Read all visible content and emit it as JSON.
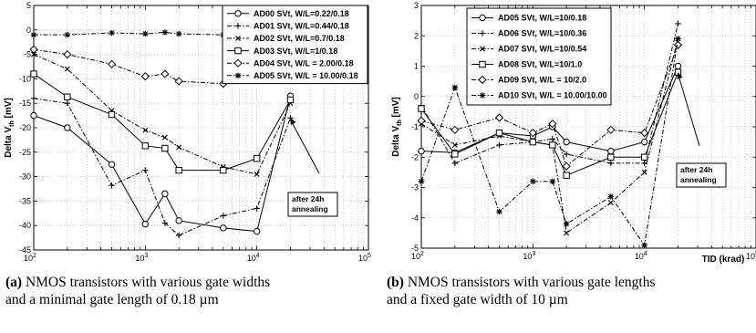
{
  "chart_data": [
    {
      "type": "line",
      "xscale": "log",
      "xlim": [
        100,
        100000
      ],
      "ylim": [
        -45,
        5
      ],
      "xticks": [
        100,
        1000,
        10000,
        100000
      ],
      "xtick_labels": [
        [
          "10",
          "2"
        ],
        [
          "10",
          "3"
        ],
        [
          "10",
          "4"
        ],
        [
          "10",
          "5"
        ]
      ],
      "yticks": [
        5,
        0,
        -5,
        -10,
        -15,
        -20,
        -25,
        -30,
        -35,
        -40,
        -45
      ],
      "ylabel": "Delta V",
      "ylabel_sub": "th",
      "ylabel_unit": " [mV]",
      "xlabel": "",
      "grid": true,
      "legend_position": "top-right",
      "annotation": {
        "lines": [
          "after 24h",
          "annealing"
        ],
        "x": 20000,
        "y": -18
      },
      "caption": {
        "label": "(a)",
        "line1": "NMOS transistors with various gate widths",
        "line2": "and a minimal gate length of 0.18 µm"
      },
      "series": [
        {
          "name": "AD00 SVt, W/L=0.22/0.18",
          "marker": "circle",
          "dash": "solid",
          "x": [
            100,
            200,
            500,
            1000,
            1500,
            2000,
            5000,
            10000,
            20000
          ],
          "y": [
            -17.5,
            -20,
            -27.5,
            -39.7,
            -33.5,
            -39,
            -40.5,
            -41.2,
            -13.5
          ]
        },
        {
          "name": "AD01 SVt, W/L=0.44/0.18",
          "marker": "plus",
          "dash": "dashdot",
          "x": [
            100,
            200,
            500,
            1000,
            1500,
            2000,
            5000,
            10000,
            20000
          ],
          "y": [
            -14,
            -15,
            -31.8,
            -28.7,
            -39.5,
            -42,
            -38,
            -36.5,
            -18
          ]
        },
        {
          "name": "AD02 SVt, W/L=0.7/0.18",
          "marker": "x",
          "dash": "dashdot",
          "x": [
            100,
            200,
            500,
            1000,
            1500,
            2000,
            5000,
            10000,
            20000
          ],
          "y": [
            -5,
            -8,
            -16.5,
            -20.5,
            -22,
            -24,
            -28,
            -29.5,
            -15
          ]
        },
        {
          "name": "AD03 SVt, W/L=1/0.18",
          "marker": "square",
          "dash": "solid",
          "x": [
            100,
            200,
            500,
            1000,
            1500,
            2000,
            5000,
            10000,
            20000
          ],
          "y": [
            -9,
            -13.7,
            -17.3,
            -23.7,
            -24.2,
            -28.7,
            -28.7,
            -26.3,
            -14.3
          ]
        },
        {
          "name": "AD04 SVt, W/L = 2.00/0.18",
          "marker": "diamond",
          "dash": "dashdot",
          "x": [
            100,
            200,
            500,
            1000,
            1500,
            2000,
            5000,
            10000
          ],
          "y": [
            -4,
            -5,
            -7,
            -9.5,
            -9,
            -10.5,
            -11,
            -10.2
          ]
        },
        {
          "name": "AD05 SVt, W/L = 10.00/0.18",
          "marker": "star",
          "dash": "dashdot",
          "x": [
            100,
            200,
            500,
            1000,
            1500,
            2000,
            5000,
            10000
          ],
          "y": [
            -1,
            -1,
            -0.6,
            -0.8,
            -0.5,
            -0.8,
            -1,
            -1
          ]
        }
      ]
    },
    {
      "type": "line",
      "xscale": "log",
      "xlim": [
        100,
        100000
      ],
      "ylim": [
        -5,
        3
      ],
      "xticks": [
        100,
        1000,
        10000,
        100000
      ],
      "xtick_labels": [
        [
          "10",
          "2"
        ],
        [
          "10",
          "3"
        ],
        [
          "10",
          "4"
        ],
        [
          "10",
          "5"
        ]
      ],
      "yticks": [
        3,
        2,
        1,
        0,
        -1,
        -2,
        -3,
        -4,
        -5
      ],
      "ylabel": "Delta V",
      "ylabel_sub": "th",
      "ylabel_unit": " [mV]",
      "xlabel": "TID (krad)",
      "grid": true,
      "legend_position": "top-left",
      "annotation": {
        "lines": [
          "after 24h",
          "annealing"
        ],
        "x": 20000,
        "y": 0.8
      },
      "caption": {
        "label": "(b)",
        "line1": "NMOS transistors with various gate lengths",
        "line2": "and a fixed gate width of 10 µm"
      },
      "series": [
        {
          "name": "AD05 SVt, W/L=10/0.18",
          "marker": "circle",
          "dash": "solid",
          "x": [
            100,
            200,
            500,
            1000,
            1500,
            2000,
            5000,
            10000,
            20000
          ],
          "y": [
            -1.8,
            -1.85,
            -1.2,
            -1.3,
            -1.0,
            -1.5,
            -1.8,
            -1.5,
            1.0
          ]
        },
        {
          "name": "AD06 SVt, W/L=10/0.36",
          "marker": "plus",
          "dash": "dashdot",
          "x": [
            100,
            200,
            500,
            1000,
            1500,
            2000,
            5000,
            10000,
            20000
          ],
          "y": [
            -0.3,
            -2.2,
            -1.6,
            -1.5,
            -1.4,
            -1.9,
            -2.2,
            -2.2,
            2.4
          ]
        },
        {
          "name": "AD07 SVt, W/L=10/0.54",
          "marker": "x",
          "dash": "dashdot",
          "x": [
            100,
            200,
            500,
            1000,
            1500,
            2000,
            5000,
            10000,
            20000
          ],
          "y": [
            -0.9,
            -1.6,
            -1.3,
            -1.5,
            -1.6,
            -4.5,
            -3.5,
            -2.5,
            1.9
          ]
        },
        {
          "name": "AD08 SVt, W/L=10/1.0",
          "marker": "square",
          "dash": "solid",
          "x": [
            100,
            200,
            500,
            1000,
            1500,
            2000,
            5000,
            10000,
            20000
          ],
          "y": [
            -0.4,
            -1.9,
            -1.2,
            -1.5,
            -1.6,
            -2.6,
            -2.0,
            -2.0,
            0.8
          ]
        },
        {
          "name": "AD09 SVt, W/L = 10/2.0",
          "marker": "diamond",
          "dash": "dashdot",
          "x": [
            100,
            200,
            500,
            1000,
            1500,
            2000,
            5000,
            10000,
            20000
          ],
          "y": [
            -0.8,
            -1.1,
            -0.7,
            -1.2,
            -0.9,
            -2.3,
            -1.1,
            -1.2,
            1.7
          ]
        },
        {
          "name": "AD10 SVt, W/L = 10.00/10.00",
          "marker": "star",
          "dash": "dashdot",
          "x": [
            100,
            200,
            500,
            1000,
            1500,
            2000,
            5000,
            10000,
            20000
          ],
          "y": [
            -2.8,
            0.3,
            -3.8,
            -2.8,
            -2.8,
            -4.2,
            -3.3,
            -4.9,
            1.9
          ]
        }
      ]
    }
  ]
}
